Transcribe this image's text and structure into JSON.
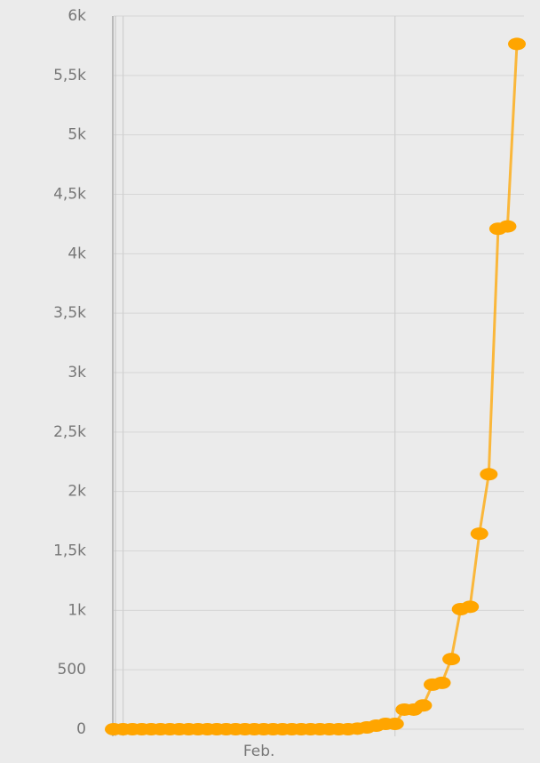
{
  "chart_data": {
    "type": "line",
    "x_month_label": "Feb.",
    "categories": [
      null,
      null,
      null,
      null,
      null,
      null,
      null,
      null,
      null,
      null,
      null,
      null,
      null,
      null,
      null,
      null,
      null,
      null,
      null,
      null,
      null,
      null,
      null,
      null,
      null,
      null,
      null,
      null,
      null,
      null,
      null,
      null,
      null,
      null,
      null,
      null,
      null,
      null,
      null,
      null,
      null,
      null,
      null,
      null
    ],
    "series": [
      {
        "color": "#ffa500",
        "values": [
          0,
          0,
          0,
          0,
          0,
          0,
          0,
          0,
          0,
          0,
          0,
          0,
          0,
          0,
          0,
          0,
          0,
          0,
          0,
          0,
          0,
          0,
          0,
          0,
          0,
          0,
          5,
          15,
          30,
          45,
          45,
          165,
          165,
          200,
          375,
          390,
          590,
          1010,
          1030,
          1645,
          2145,
          4210,
          4230,
          5765
        ]
      }
    ],
    "ylim": [
      0,
      6000
    ],
    "yticks": [
      0,
      500,
      {
        "value": 1000,
        "label": "1k"
      },
      {
        "value": 1500,
        "label": "1,5k"
      },
      {
        "value": 2000,
        "label": "2k"
      },
      {
        "value": 2500,
        "label": "2,5k"
      },
      {
        "value": 3000,
        "label": "3k"
      },
      {
        "value": 3500,
        "label": "3,5k"
      },
      {
        "value": 4000,
        "label": "4k"
      },
      {
        "value": 4500,
        "label": "4,5k"
      },
      {
        "value": 5000,
        "label": "5k"
      },
      {
        "value": 5500,
        "label": "5,5k"
      },
      {
        "value": 6000,
        "label": "6k"
      }
    ],
    "grid": true
  }
}
